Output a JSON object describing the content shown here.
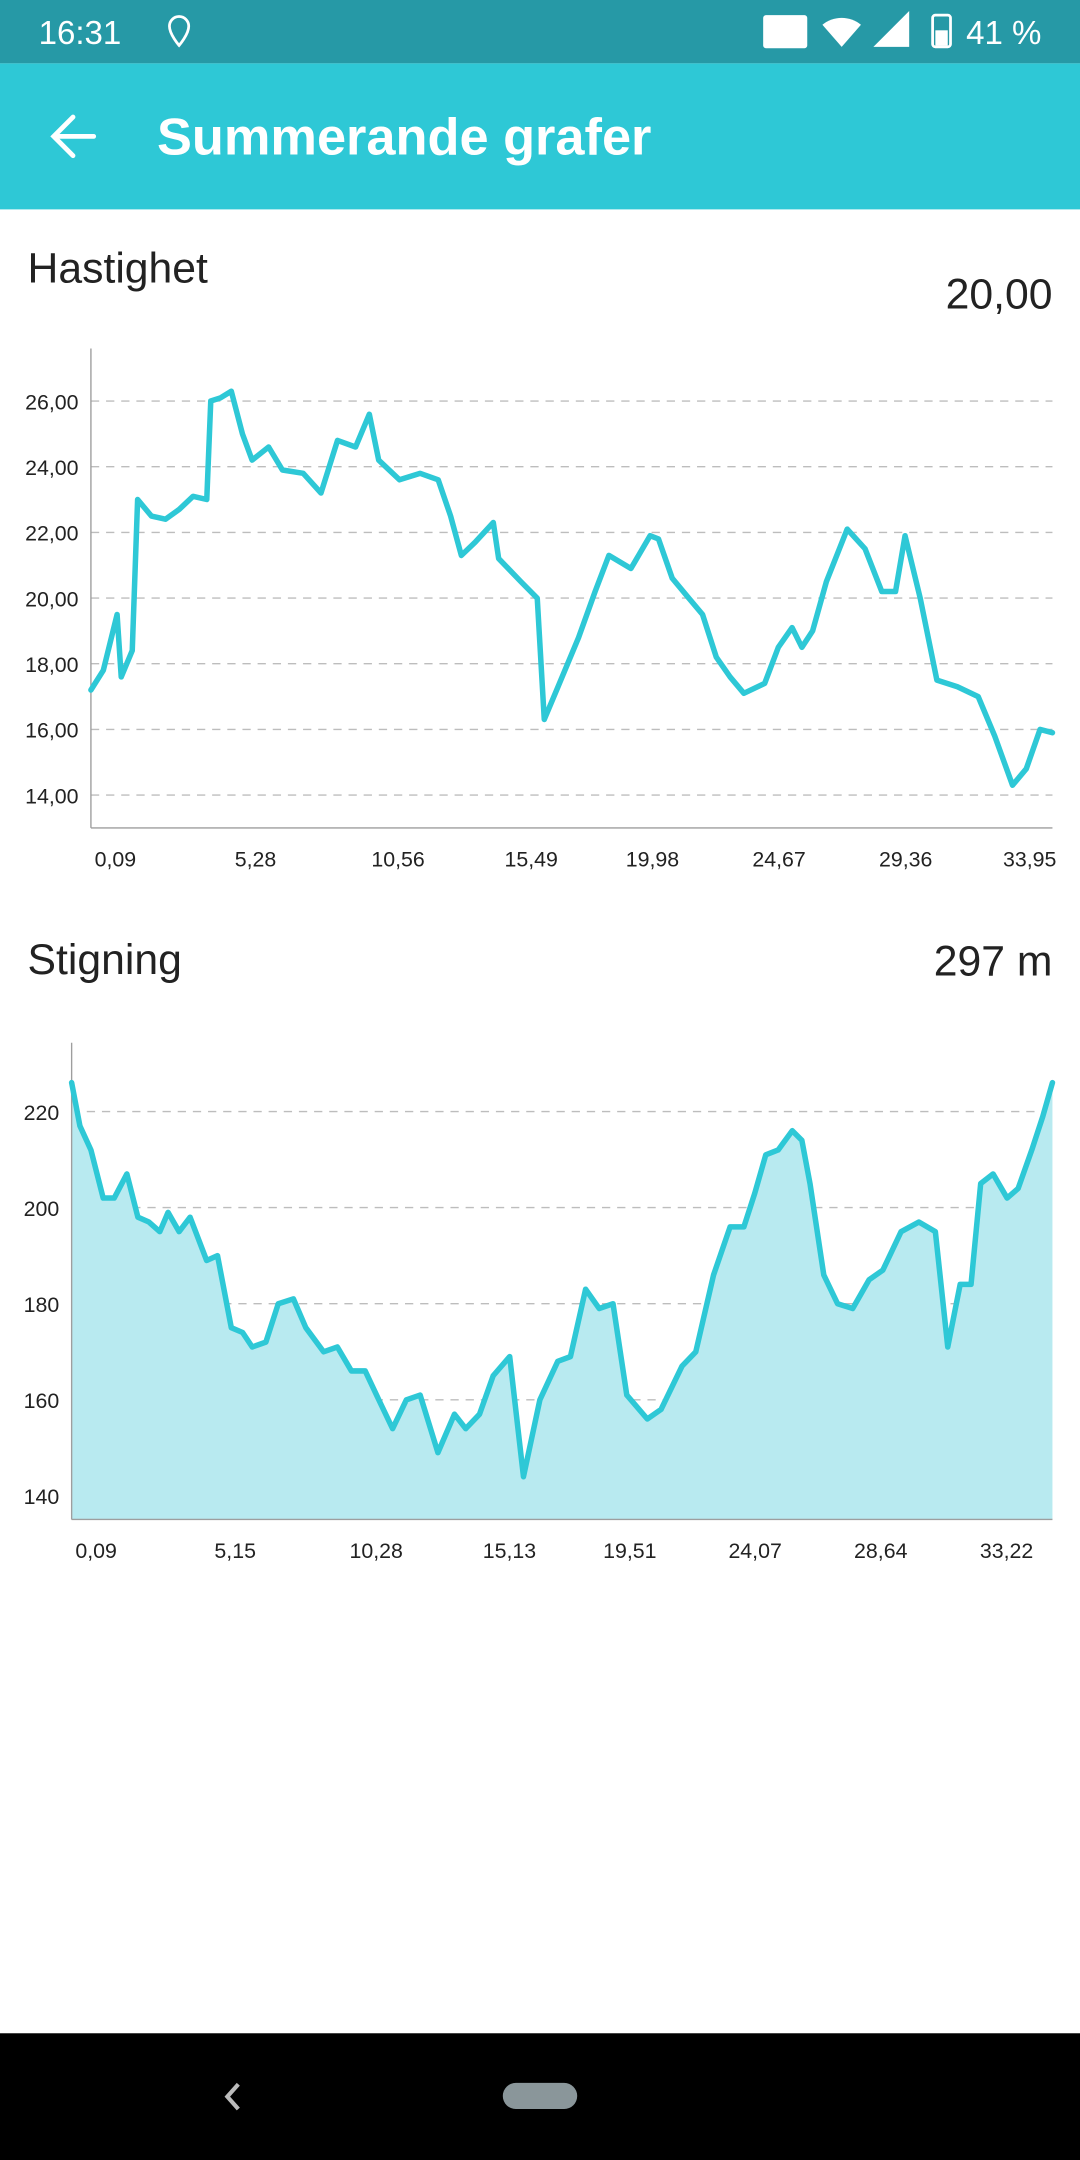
{
  "status_bar": {
    "time": "16:31",
    "battery": "41 %"
  },
  "header": {
    "title": "Summerande grafer"
  },
  "chart_data": [
    {
      "type": "line",
      "title": "Hastighet",
      "summary": "20,00",
      "color": "#2ec8d6",
      "grid": true,
      "x": [
        0.0,
        0.46,
        0.97,
        1.12,
        1.53,
        1.73,
        2.24,
        2.76,
        3.27,
        3.78,
        4.29,
        4.44,
        4.8,
        5.2,
        5.61,
        5.97,
        6.58,
        7.09,
        7.86,
        8.52,
        9.13,
        9.8,
        10.31,
        10.66,
        11.43,
        12.19,
        12.86,
        13.32,
        13.72,
        14.23,
        14.9,
        15.1,
        15.92,
        16.53,
        16.79,
        17.3,
        18.06,
        18.67,
        19.18,
        20.0,
        20.71,
        21.02,
        21.53,
        22.14,
        22.65,
        23.16,
        23.67,
        24.18,
        24.95,
        25.46,
        25.97,
        26.33,
        26.73,
        27.24,
        28.01,
        28.67,
        29.29,
        29.8,
        30.15,
        30.71,
        31.33,
        32.09,
        32.86,
        33.47,
        34.13,
        34.64,
        35.15,
        35.61
      ],
      "values": [
        17.2,
        17.8,
        19.5,
        17.6,
        18.4,
        23.0,
        22.5,
        22.4,
        22.7,
        23.1,
        23.0,
        26.0,
        26.1,
        26.3,
        25.0,
        24.2,
        24.6,
        23.9,
        23.8,
        23.2,
        24.8,
        24.6,
        25.6,
        24.2,
        23.6,
        23.8,
        23.6,
        22.5,
        21.3,
        21.7,
        22.3,
        21.2,
        20.5,
        20.0,
        16.3,
        17.3,
        18.8,
        20.2,
        21.3,
        20.9,
        21.9,
        21.8,
        20.6,
        20.0,
        19.5,
        18.2,
        17.6,
        17.1,
        17.4,
        18.5,
        19.1,
        18.5,
        19.0,
        20.5,
        22.1,
        21.5,
        20.2,
        20.2,
        21.9,
        20.0,
        17.5,
        17.3,
        17.0,
        15.8,
        14.3,
        14.8,
        16.0,
        15.9
      ],
      "xlim": [
        0,
        35.61
      ],
      "xticks": [
        {
          "value": 0.09,
          "label": "0,09"
        },
        {
          "value": 5.28,
          "label": "5,28"
        },
        {
          "value": 10.56,
          "label": "10,56"
        },
        {
          "value": 15.49,
          "label": "15,49"
        },
        {
          "value": 19.98,
          "label": "19,98"
        },
        {
          "value": 24.67,
          "label": "24,67"
        },
        {
          "value": 29.36,
          "label": "29,36"
        },
        {
          "value": 33.95,
          "label": "33,95"
        }
      ],
      "ylim": [
        13,
        27.6
      ],
      "yticks": [
        {
          "value": 14,
          "label": "14,00"
        },
        {
          "value": 16,
          "label": "16,00"
        },
        {
          "value": 18,
          "label": "18,00"
        },
        {
          "value": 20,
          "label": "20,00"
        },
        {
          "value": 22,
          "label": "22,00"
        },
        {
          "value": 24,
          "label": "24,00"
        },
        {
          "value": 26,
          "label": "26,00"
        }
      ]
    },
    {
      "type": "area",
      "title": "Stigning",
      "summary": "297 m",
      "color": "#2ec8d6",
      "fill": "#b8eaf0",
      "grid": true,
      "x": [
        0.0,
        0.3,
        0.7,
        1.15,
        1.55,
        2.01,
        2.41,
        2.81,
        3.21,
        3.51,
        3.91,
        4.31,
        4.91,
        5.31,
        5.81,
        6.22,
        6.57,
        7.07,
        7.52,
        8.07,
        8.52,
        9.17,
        9.67,
        10.18,
        10.68,
        11.18,
        11.68,
        12.18,
        12.68,
        13.33,
        13.93,
        14.34,
        14.84,
        15.34,
        15.94,
        16.44,
        17.04,
        17.69,
        18.15,
        18.7,
        19.2,
        19.7,
        20.2,
        20.95,
        21.45,
        22.21,
        22.71,
        23.36,
        23.96,
        24.46,
        24.86,
        25.26,
        25.71,
        26.22,
        26.57,
        26.87,
        27.37,
        27.87,
        28.42,
        29.02,
        29.52,
        30.18,
        30.83,
        31.43,
        31.88,
        32.33,
        32.73,
        33.08,
        33.53,
        34.04,
        34.44,
        34.94,
        35.34,
        35.69
      ],
      "values": [
        226,
        217,
        212,
        202,
        202,
        207,
        198,
        197,
        195,
        199,
        195,
        198,
        189,
        190,
        175,
        174,
        171,
        172,
        180,
        181,
        175,
        170,
        171,
        166,
        166,
        160,
        154,
        160,
        161,
        149,
        157,
        154,
        157,
        165,
        169,
        144,
        160,
        168,
        169,
        183,
        179,
        180,
        161,
        156,
        158,
        167,
        170,
        186,
        196,
        196,
        203,
        211,
        212,
        216,
        214,
        205,
        186,
        180,
        179,
        185,
        187,
        195,
        197,
        195,
        171,
        184,
        184,
        205,
        207,
        202,
        204,
        212,
        219,
        226
      ],
      "xlim": [
        0,
        35.69
      ],
      "xticks": [
        {
          "value": 0.09,
          "label": "0,09"
        },
        {
          "value": 5.15,
          "label": "5,15"
        },
        {
          "value": 10.28,
          "label": "10,28"
        },
        {
          "value": 15.13,
          "label": "15,13"
        },
        {
          "value": 19.51,
          "label": "19,51"
        },
        {
          "value": 24.07,
          "label": "24,07"
        },
        {
          "value": 28.64,
          "label": "28,64"
        },
        {
          "value": 33.22,
          "label": "33,22"
        }
      ],
      "ylim": [
        135.1,
        234.3
      ],
      "yticks": [
        140,
        160,
        180,
        200,
        220
      ]
    }
  ]
}
